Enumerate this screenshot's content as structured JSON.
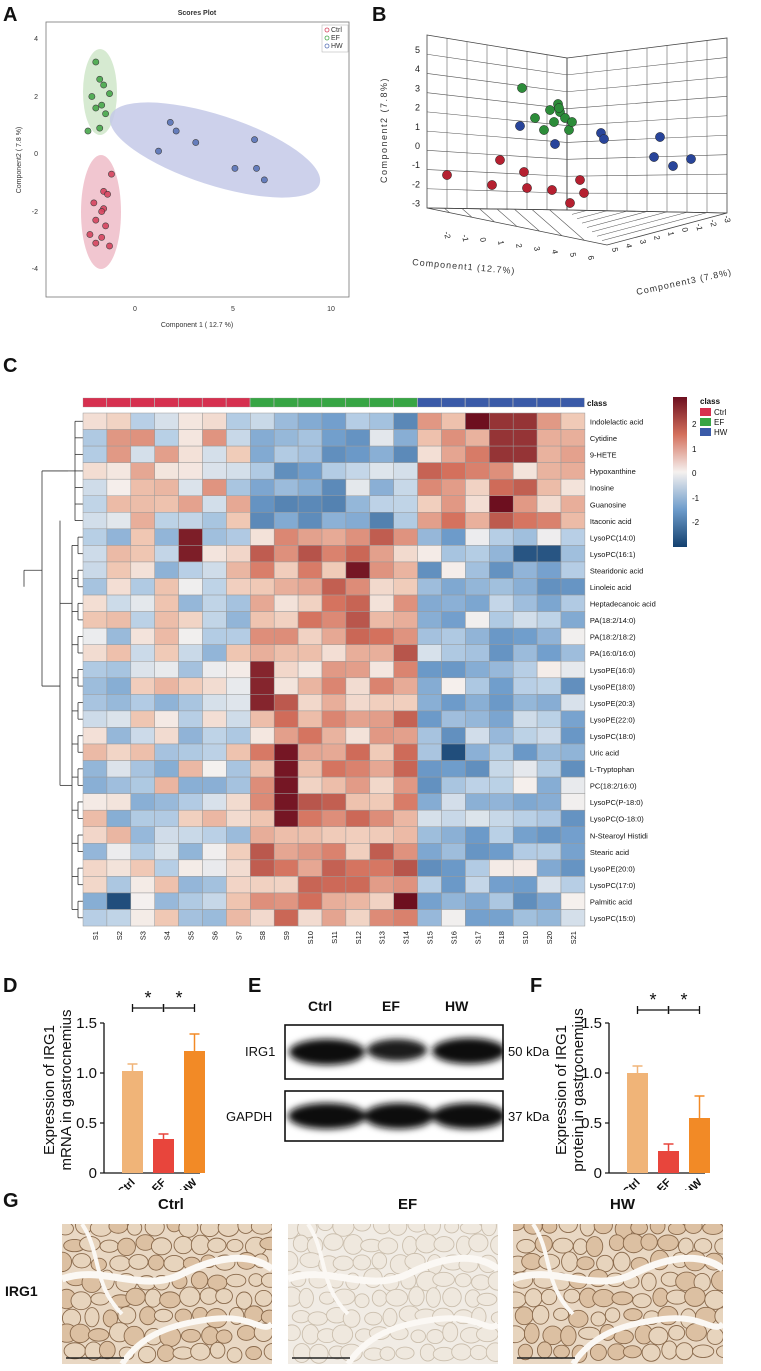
{
  "panels": {
    "A": "A",
    "B": "B",
    "C": "C",
    "D": "D",
    "E": "E",
    "F": "F",
    "G": "G"
  },
  "panelA": {
    "title": "Scores Plot",
    "xlabel": "Component 1 ( 12.7 %)",
    "ylabel": "Component2 ( 7.8 %)",
    "xticks": [
      "0",
      "5",
      "10"
    ],
    "yticks": [
      "4",
      "2",
      "0",
      "-2",
      "-4"
    ],
    "legend": [
      "Ctrl",
      "EF",
      "HW"
    ],
    "colors": {
      "Ctrl": "#d6455f",
      "EF": "#48a84c",
      "HW": "#5a74b8"
    }
  },
  "panelB": {
    "xlabel": "Component1 (12.7%)",
    "ylabel": "Component2 (7.8%)",
    "zlabel": "Component3 (7.8%)",
    "yticks": [
      "5",
      "4",
      "3",
      "2",
      "1",
      "0",
      "-1",
      "-2",
      "-3"
    ],
    "xticks": [
      "-2",
      "-1",
      "0",
      "1",
      "2",
      "3",
      "4",
      "5",
      "6"
    ],
    "zticks": [
      "5",
      "4",
      "3",
      "2",
      "1",
      "0",
      "-1",
      "-2",
      "-3"
    ]
  },
  "panelC": {
    "legend_title": "class",
    "legend": [
      "Ctrl",
      "EF",
      "HW"
    ],
    "scale_title": "class",
    "scale_ticks": [
      "2",
      "1",
      "0",
      "-1",
      "-2"
    ],
    "class_label": "class",
    "samples": [
      "S1",
      "S2",
      "S3",
      "S4",
      "S5",
      "S6",
      "S7",
      "S8",
      "S9",
      "S10",
      "S11",
      "S12",
      "S13",
      "S14",
      "S15",
      "S16",
      "S17",
      "S18",
      "S10",
      "S20",
      "S21"
    ],
    "metabolites": [
      "Indolelactic acid",
      "Cytidine",
      "9-HETE",
      "Hypoxanthine",
      "Inosine",
      "Guanosine",
      "Itaconic acid",
      "LysoPC(14:0)",
      "LysoPC(16:1)",
      "Stearidonic acid",
      "Linoleic acid",
      "Heptadecanoic acid",
      "PA(18:2/14:0)",
      "PA(18:2/18:2)",
      "PA(16:0/16:0)",
      "LysoPE(16:0)",
      "LysoPE(18:0)",
      "LysoPE(20:3)",
      "LysoPE(22:0)",
      "LysoPC(18:0)",
      "Uric acid",
      "L-Tryptophan",
      "PC(18:2/16:0)",
      "LysoPC(P-18:0)",
      "LysoPC(O-18:0)",
      "N-Stearoyl Histidi",
      "Stearic acid",
      "LysoPE(20:0)",
      "LysoPC(17:0)",
      "Palmitic acid",
      "LysoPC(15:0)"
    ]
  },
  "chart_data": [
    {
      "type": "bar",
      "panel": "D",
      "categories": [
        "Ctrl",
        "EF",
        "HW"
      ],
      "values": [
        1.02,
        0.34,
        1.22
      ],
      "errors": [
        0.07,
        0.05,
        0.17
      ],
      "ylabel": "Expression of IRG1 mRNA in gastrocnemius",
      "ylim": [
        0,
        1.5
      ],
      "yticks": [
        "0",
        "0.5",
        "1.0",
        "1.5"
      ],
      "colors": [
        "#f0b478",
        "#e8453c",
        "#f28a26"
      ],
      "significance": [
        "*",
        "*"
      ]
    },
    {
      "type": "bar",
      "panel": "F",
      "categories": [
        "Ctrl",
        "EF",
        "HW"
      ],
      "values": [
        1.0,
        0.22,
        0.55
      ],
      "errors": [
        0.07,
        0.07,
        0.22
      ],
      "ylabel": "Expression of IRG1 protein in gastrocnemius",
      "ylim": [
        0,
        1.5
      ],
      "yticks": [
        "0",
        "0.5",
        "1.0",
        "1.5"
      ],
      "colors": [
        "#f0b478",
        "#e8453c",
        "#f28a26"
      ],
      "significance": [
        "*",
        "*"
      ]
    }
  ],
  "panelE": {
    "groups": [
      "Ctrl",
      "EF",
      "HW"
    ],
    "rows": [
      {
        "protein": "IRG1",
        "size": "50 kDa"
      },
      {
        "protein": "GAPDH",
        "size": "37 kDa"
      }
    ]
  },
  "panelG": {
    "groups": [
      "Ctrl",
      "EF",
      "HW"
    ],
    "row_label": "IRG1"
  }
}
